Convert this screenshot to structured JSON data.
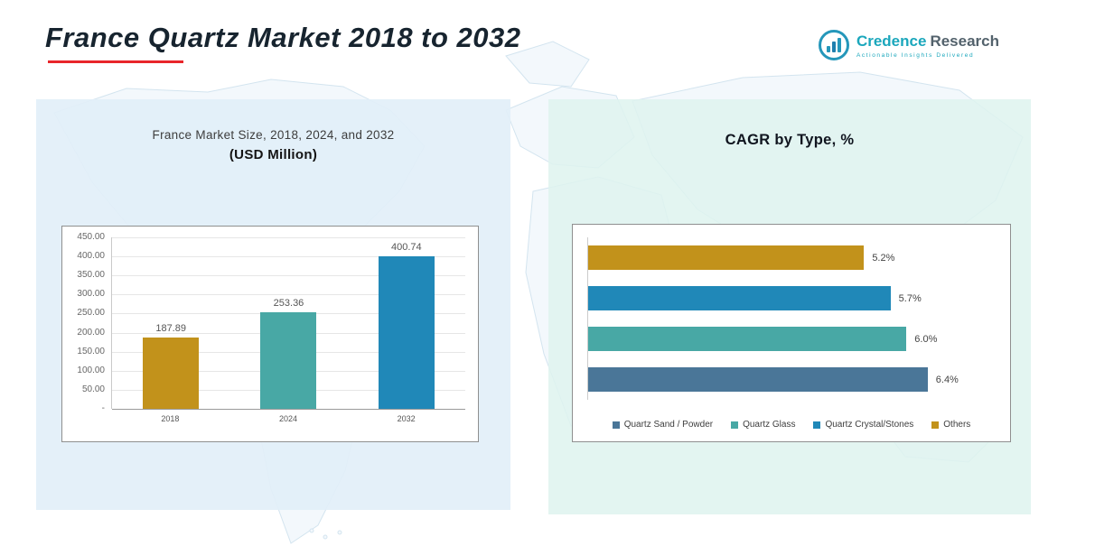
{
  "header": {
    "title": "France Quartz Market 2018 to 2032"
  },
  "logo": {
    "name_primary": "Credence",
    "name_secondary": "Research",
    "tagline": "Actionable Insights Delivered"
  },
  "left_panel": {
    "title_line1": "France Market Size, 2018, 2024, and 2032",
    "title_line2": "(USD Million)"
  },
  "right_panel": {
    "title": "CAGR by Type, %"
  },
  "colors": {
    "accent_red": "#e8252a",
    "gold": "#c2921b",
    "teal": "#48a8a5",
    "blue": "#2088b8",
    "slate": "#4a7698",
    "logo_teal": "#2597ba"
  },
  "chart_data": [
    {
      "type": "bar",
      "title": "France Market Size, 2018, 2024, and 2032 (USD Million)",
      "categories": [
        "2018",
        "2024",
        "2032"
      ],
      "values": [
        187.89,
        253.36,
        400.74
      ],
      "value_labels": [
        "187.89",
        "253.36",
        "400.74"
      ],
      "bar_colors": [
        "#c2921b",
        "#48a8a5",
        "#2088b8"
      ],
      "xlabel": "",
      "ylabel": "",
      "ylim": [
        0,
        450
      ],
      "ytick_labels": [
        "450.00",
        "400.00",
        "350.00",
        "300.00",
        "250.00",
        "200.00",
        "150.00",
        "100.00",
        "50.00",
        "-"
      ],
      "grid": true,
      "legend_position": "none"
    },
    {
      "type": "bar_horizontal",
      "title": "CAGR by Type, %",
      "categories": [
        "Others",
        "Quartz Crystal/Stones",
        "Quartz Glass",
        "Quartz Sand / Powder"
      ],
      "values": [
        5.2,
        5.7,
        6.0,
        6.4
      ],
      "value_labels": [
        "5.2%",
        "5.7%",
        "6.0%",
        "6.4%"
      ],
      "bar_colors": [
        "#c2921b",
        "#2088b8",
        "#48a8a5",
        "#4a7698"
      ],
      "xlabel": "",
      "ylabel": "",
      "xlim": [
        0,
        7
      ],
      "grid": false,
      "legend_position": "bottom",
      "legend": [
        {
          "label": "Quartz Sand / Powder",
          "color": "#4a7698"
        },
        {
          "label": "Quartz Glass",
          "color": "#48a8a5"
        },
        {
          "label": "Quartz Crystal/Stones",
          "color": "#2088b8"
        },
        {
          "label": "Others",
          "color": "#c2921b"
        }
      ]
    }
  ]
}
